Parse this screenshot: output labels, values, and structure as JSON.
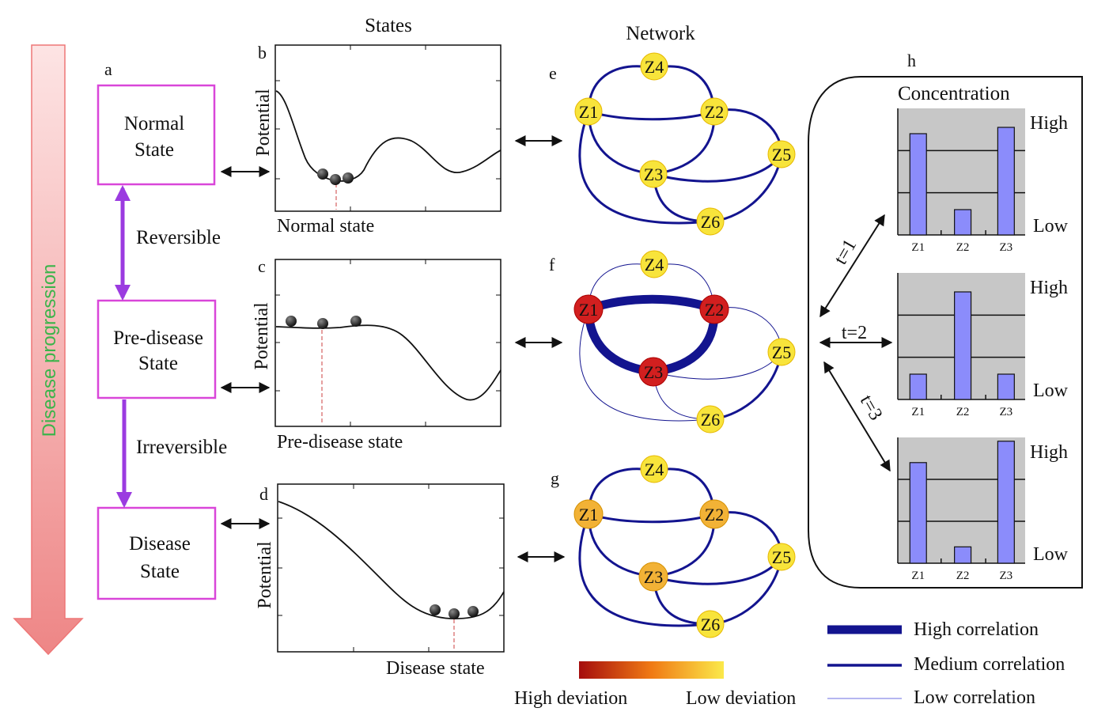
{
  "progression": {
    "label": "Disease progression",
    "arrow_color": "#f08a8a",
    "text_color": "#3cb44b"
  },
  "panel_letters": {
    "a": "a",
    "b": "b",
    "c": "c",
    "d": "d",
    "e": "e",
    "f": "f",
    "g": "g",
    "h": "h"
  },
  "column_titles": {
    "states": "States",
    "network": "Network"
  },
  "state_boxes": [
    {
      "line1": "Normal",
      "line2": "State"
    },
    {
      "line1": "Pre-disease",
      "line2": "State"
    },
    {
      "line1": "Disease",
      "line2": "State"
    }
  ],
  "transitions": {
    "reversible": "Reversible",
    "irreversible": "Irreversible"
  },
  "potential_plots": [
    {
      "ylabel": "Potential",
      "xlabel": "Normal state"
    },
    {
      "ylabel": "Potential",
      "xlabel": "Pre-disease state"
    },
    {
      "ylabel": "Potential",
      "xlabel": "Disease  state"
    }
  ],
  "nodes": {
    "z1": "Z1",
    "z2": "Z2",
    "z3": "Z3",
    "z4": "Z4",
    "z5": "Z5",
    "z6": "Z6"
  },
  "concentration": {
    "title": "Concentration",
    "high": "High",
    "low": "Low",
    "time_labels": [
      "t=1",
      "t=2",
      "t=3"
    ],
    "categories": [
      "Z1",
      "Z2",
      "Z3"
    ],
    "values": [
      [
        0.8,
        0.2,
        0.85
      ],
      [
        0.2,
        0.85,
        0.2
      ],
      [
        0.8,
        0.13,
        0.97
      ]
    ]
  },
  "deviation_scale": {
    "high": "High deviation",
    "low": "Low deviation",
    "from_color": "#a50d0d",
    "to_color": "#fbe94a"
  },
  "legend": [
    {
      "label": "High correlation"
    },
    {
      "label": "Medium correlation"
    },
    {
      "label": "Low correlation"
    }
  ],
  "colors": {
    "box_border": "#d946d9",
    "arrow_purple": "#9b3be0",
    "network_edge": "#13148f",
    "node_yellow": "#f8e43b",
    "node_red": "#d21f1f",
    "node_orange": "#f2b236",
    "bar_fill": "#8b8cfb",
    "bar_panel": "#c7c7c7"
  }
}
